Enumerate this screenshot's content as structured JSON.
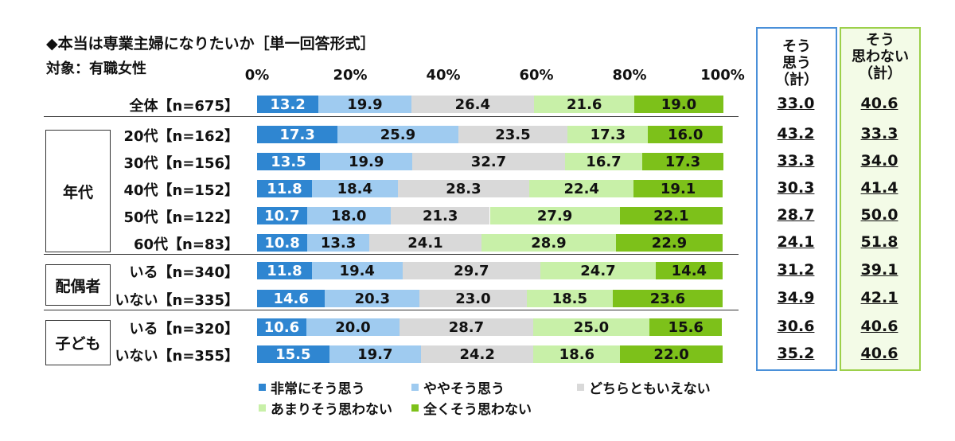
{
  "header": {
    "title": "◆本当は専業主婦になりたいか［単一回答形式］",
    "subtitle": "対象：有職女性"
  },
  "colors": {
    "strongly_agree": "#2f86d1",
    "somewhat_agree": "#9fcbf0",
    "neutral": "#d9d9d9",
    "somewhat_disagree": "#c8f0a8",
    "strongly_disagree": "#7dc11a",
    "agree_box": "#4a90d9",
    "disagree_box": "#9cd04a"
  },
  "chart_data": {
    "type": "bar",
    "orientation": "horizontal-stacked-100",
    "x_ticks": [
      "0%",
      "20%",
      "40%",
      "60%",
      "80%",
      "100%"
    ],
    "xlim": [
      0,
      100
    ],
    "categories": [
      {
        "group": "",
        "label": "全体【n=675】"
      },
      {
        "group": "年代",
        "label": "20代【n=162】"
      },
      {
        "group": "年代",
        "label": "30代【n=156】"
      },
      {
        "group": "年代",
        "label": "40代【n=152】"
      },
      {
        "group": "年代",
        "label": "50代【n=122】"
      },
      {
        "group": "年代",
        "label": "60代【n=83】"
      },
      {
        "group": "配偶者",
        "label": "いる【n=340】"
      },
      {
        "group": "配偶者",
        "label": "いない【n=335】"
      },
      {
        "group": "子ども",
        "label": "いる【n=320】"
      },
      {
        "group": "子ども",
        "label": "いない【n=355】"
      }
    ],
    "groups": [
      "年代",
      "配偶者",
      "子ども"
    ],
    "series": [
      {
        "name": "非常にそう思う",
        "values": [
          13.2,
          17.3,
          13.5,
          11.8,
          10.7,
          10.8,
          11.8,
          14.6,
          10.6,
          15.5
        ]
      },
      {
        "name": "ややそう思う",
        "values": [
          19.9,
          25.9,
          19.9,
          18.4,
          18.0,
          13.3,
          19.4,
          20.3,
          20.0,
          19.7
        ]
      },
      {
        "name": "どちらともいえない",
        "values": [
          26.4,
          23.5,
          32.7,
          28.3,
          21.3,
          24.1,
          29.7,
          23.0,
          28.7,
          24.2
        ]
      },
      {
        "name": "あまりそう思わない",
        "values": [
          21.6,
          17.3,
          16.7,
          22.4,
          27.9,
          28.9,
          24.7,
          18.5,
          25.0,
          18.6
        ]
      },
      {
        "name": "全くそう思わない",
        "values": [
          19.0,
          16.0,
          17.3,
          19.1,
          22.1,
          22.9,
          14.4,
          23.6,
          15.6,
          22.0
        ]
      }
    ],
    "summary_columns": [
      {
        "label": "そう思う（計）",
        "values": [
          "33.0",
          "43.2",
          "33.3",
          "30.3",
          "28.7",
          "24.1",
          "31.2",
          "34.9",
          "30.6",
          "35.2"
        ]
      },
      {
        "label": "そう思わない（計）",
        "values": [
          "40.6",
          "33.3",
          "34.0",
          "41.4",
          "50.0",
          "51.8",
          "39.1",
          "42.1",
          "40.6",
          "40.6"
        ]
      }
    ],
    "legend": [
      "非常にそう思う",
      "ややそう思う",
      "どちらともいえない",
      "あまりそう思わない",
      "全くそう思わない"
    ],
    "legend_position": "bottom"
  }
}
